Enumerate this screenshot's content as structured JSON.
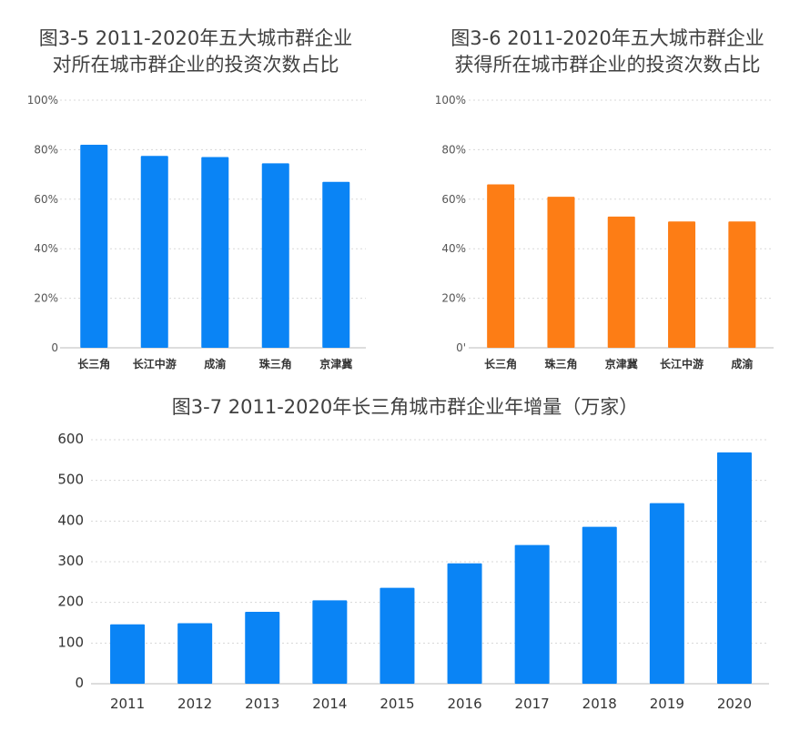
{
  "chart_data": [
    {
      "type": "bar",
      "title": "图3-5   2011-2020年五大城市群企业\n对所在城市群企业的投资次数占比",
      "categories": [
        "长三角",
        "长江中游",
        "成渝",
        "珠三角",
        "京津冀"
      ],
      "values": [
        82,
        77.5,
        77,
        74.5,
        67
      ],
      "ylim": [
        0,
        100
      ],
      "yticks": [
        "0",
        "20%",
        "40%",
        "60%",
        "80%",
        "100%"
      ],
      "color": "#0a84f5",
      "grid": true
    },
    {
      "type": "bar",
      "title": "图3-6   2011-2020年五大城市群企业\n获得所在城市群企业的投资次数占比",
      "categories": [
        "长三角",
        "珠三角",
        "京津冀",
        "长江中游",
        "成渝"
      ],
      "values": [
        66,
        61,
        53,
        51,
        51
      ],
      "ylim": [
        0,
        100
      ],
      "yticks": [
        "0'",
        "20%",
        "40%",
        "60%",
        "80%",
        "100%"
      ],
      "color": "#fd7d15",
      "grid": true
    },
    {
      "type": "bar",
      "title": "图3-7   2011-2020年长三角城市群企业年增量（万家）",
      "categories": [
        "2011",
        "2012",
        "2013",
        "2014",
        "2015",
        "2016",
        "2017",
        "2018",
        "2019",
        "2020"
      ],
      "values": [
        146,
        149,
        177,
        205,
        236,
        296,
        341,
        386,
        444,
        569
      ],
      "ylim": [
        0,
        600
      ],
      "yticks": [
        "0",
        "100",
        "200",
        "300",
        "400",
        "500",
        "600"
      ],
      "color": "#0a84f5",
      "grid": true
    }
  ]
}
